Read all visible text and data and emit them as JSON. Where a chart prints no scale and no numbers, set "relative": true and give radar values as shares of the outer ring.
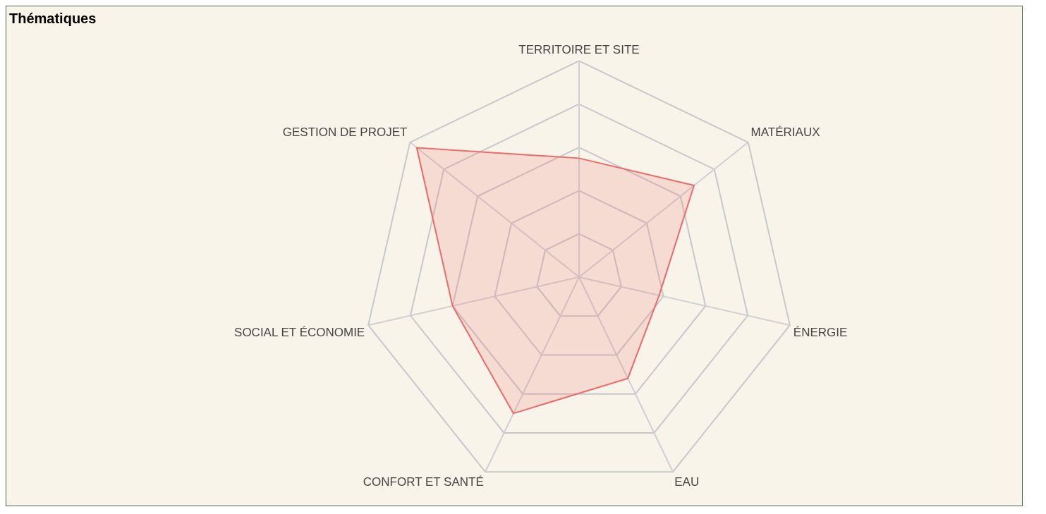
{
  "chart_data": {
    "type": "radar",
    "title": "Thématiques",
    "relative": true,
    "categories": [
      "TERRITOIRE ET SITE",
      "MATÉRIAUX",
      "ÉNERGIE",
      "EAU",
      "CONFORT ET SANTÉ",
      "SOCIAL ET ÉCONOMIE",
      "GESTION DE PROJET"
    ],
    "series": [
      {
        "color": "#f06868",
        "values": [
          0.55,
          0.68,
          0.38,
          0.52,
          0.7,
          0.6,
          0.96
        ]
      }
    ],
    "legend": false
  }
}
